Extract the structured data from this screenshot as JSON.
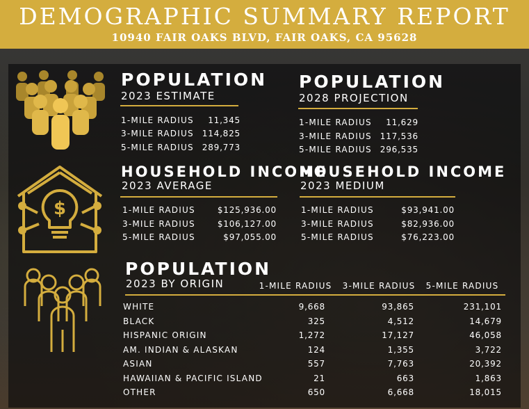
{
  "header": {
    "title": "DEMOGRAPHIC SUMMARY REPORT",
    "address": "10940 FAIR OAKS BLVD, FAIR OAKS, CA 95628"
  },
  "population_2023": {
    "title": "POPULATION",
    "subtitle": "2023 ESTIMATE",
    "rows": [
      {
        "label": "1-MILE RADIUS",
        "value": "11,345"
      },
      {
        "label": "3-MILE RADIUS",
        "value": "114,825"
      },
      {
        "label": "5-MILE RADIUS",
        "value": "289,773"
      }
    ]
  },
  "population_2028": {
    "title": "POPULATION",
    "subtitle": "2028 PROJECTION",
    "rows": [
      {
        "label": "1-MILE RADIUS",
        "value": "11,629"
      },
      {
        "label": "3-MILE RADIUS",
        "value": "117,536"
      },
      {
        "label": "5-MILE RADIUS",
        "value": "296,535"
      }
    ]
  },
  "income_average": {
    "title": "HOUSEHOLD INCOME",
    "subtitle": "2023 AVERAGE",
    "rows": [
      {
        "label": "1-MILE RADIUS",
        "value": "$125,936.00"
      },
      {
        "label": "3-MILE RADIUS",
        "value": "$106,127.00"
      },
      {
        "label": "5-MILE RADIUS",
        "value": "$97,055.00"
      }
    ]
  },
  "income_medium": {
    "title": "HOUSEHOLD INCOME",
    "subtitle": "2023 MEDIUM",
    "rows": [
      {
        "label": "1-MILE RADIUS",
        "value": "$93,941.00"
      },
      {
        "label": "3-MILE RADIUS",
        "value": "$82,936.00"
      },
      {
        "label": "5-MILE RADIUS",
        "value": "$76,223.00"
      }
    ]
  },
  "origin": {
    "title": "POPULATION",
    "subtitle": "2023 BY ORIGIN",
    "columns": [
      "1-MILE RADIUS",
      "3-MILE RADIUS",
      "5-MILE RADIUS"
    ],
    "rows": [
      {
        "label": "WHITE",
        "values": [
          "9,668",
          "93,865",
          "231,101"
        ]
      },
      {
        "label": "BLACK",
        "values": [
          "325",
          "4,512",
          "14,679"
        ]
      },
      {
        "label": "HISPANIC ORIGIN",
        "values": [
          "1,272",
          "17,127",
          "46,058"
        ]
      },
      {
        "label": "AM. INDIAN & ALASKAN",
        "values": [
          "124",
          "1,355",
          "3,722"
        ]
      },
      {
        "label": "ASIAN",
        "values": [
          "557",
          "7,763",
          "20,392"
        ]
      },
      {
        "label": "HAWAIIAN & PACIFIC ISLAND",
        "values": [
          "21",
          "663",
          "1,863"
        ]
      },
      {
        "label": "OTHER",
        "values": [
          "650",
          "6,668",
          "18,015"
        ]
      }
    ]
  },
  "colors": {
    "gold": "#d4ad3e",
    "gold_dark": "#a8862b",
    "text": "#ffffff"
  },
  "icons": {
    "population": "people-crowd-icon",
    "income": "house-lightbulb-dollar-icon",
    "origin": "people-group-outline-icon"
  }
}
